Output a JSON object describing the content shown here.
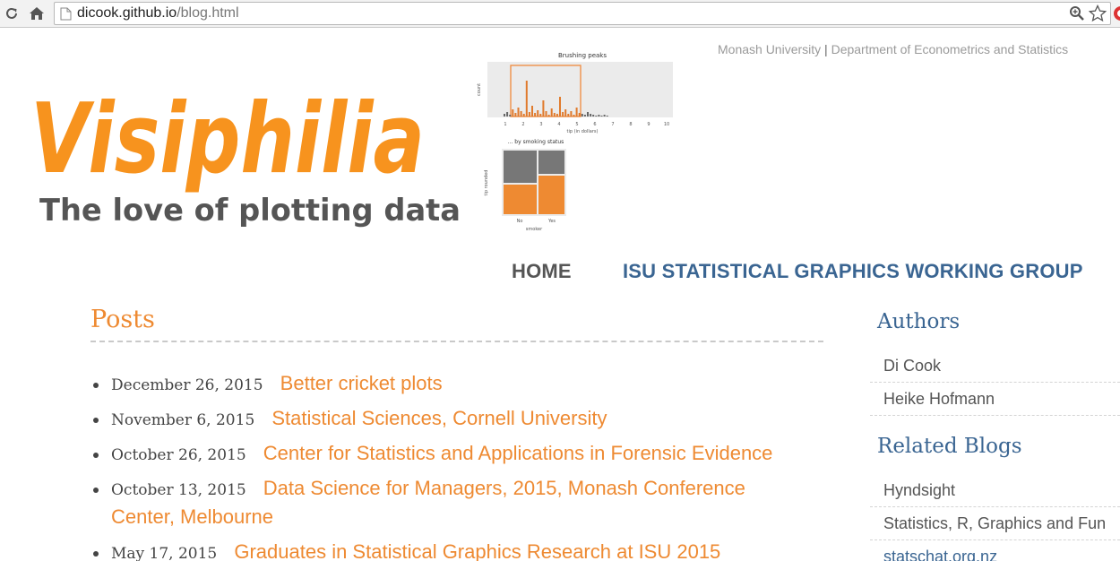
{
  "browser": {
    "url_host": "dicook.github.io",
    "url_path": "/blog.html"
  },
  "header": {
    "logo_title": "Visiphilia",
    "logo_subtitle": "The love of plotting data",
    "thumbnail": {
      "top_title": "Brushing peaks",
      "top_xlabel": "tip (in dollars)",
      "top_ylabel": "count",
      "top_ticks_x": [
        "1",
        "2",
        "3",
        "4",
        "5",
        "6",
        "7",
        "8",
        "9",
        "10"
      ],
      "bottom_title": "... by smoking status",
      "bottom_xlabel": "smoker",
      "bottom_ylabel": "tip rounded",
      "bottom_ticks_x": [
        "No",
        "Yes"
      ]
    },
    "affiliation_university": "Monash University",
    "affiliation_separator": "|",
    "affiliation_department": "Department of Econometrics and Statistics"
  },
  "nav": {
    "home": "HOME",
    "isu": "ISU STATISTICAL GRAPHICS WORKING GROUP"
  },
  "posts": {
    "title": "Posts",
    "items": [
      {
        "date": "December 26, 2015",
        "title": "Better cricket plots"
      },
      {
        "date": "November 6, 2015",
        "title": "Statistical Sciences, Cornell University"
      },
      {
        "date": "October 26, 2015",
        "title": "Center for Statistics and Applications in Forensic Evidence"
      },
      {
        "date": "October 13, 2015",
        "title": "Data Science for Managers, 2015, Monash Conference Center, Melbourne"
      },
      {
        "date": "May 17, 2015",
        "title": "Graduates in Statistical Graphics Research at ISU 2015"
      }
    ]
  },
  "sidebar": {
    "authors_title": "Authors",
    "authors": [
      "Di Cook",
      "Heike Hofmann"
    ],
    "related_title": "Related Blogs",
    "related": [
      "Hyndsight",
      "Statistics, R, Graphics and Fun",
      "statschat.org.nz"
    ]
  },
  "colors": {
    "accent_orange": "#ee8a32",
    "link_blue": "#3a6592",
    "logo_orange": "#f7931e",
    "logo_gray": "#555555"
  },
  "icons": {
    "reload": "reload-icon",
    "home": "home-icon",
    "page": "page-icon",
    "zoom": "zoom-icon",
    "star": "bookmark-star-icon"
  }
}
